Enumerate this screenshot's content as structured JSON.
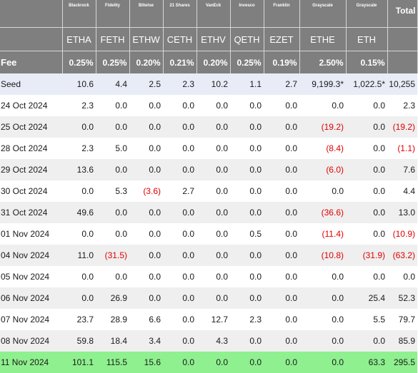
{
  "table": {
    "issuers": [
      "Blackrock",
      "Fidelity",
      "Bitwise",
      "21 Shares",
      "VanEck",
      "Invesco",
      "Franklin",
      "Grayscale",
      "Grayscale"
    ],
    "total_label": "Total",
    "tickers": [
      "ETHA",
      "FETH",
      "ETHW",
      "CETH",
      "ETHV",
      "QETH",
      "EZET",
      "ETHE",
      "ETH"
    ],
    "fee_label": "Fee",
    "fees": [
      "0.25%",
      "0.25%",
      "0.20%",
      "0.21%",
      "0.20%",
      "0.25%",
      "0.19%",
      "2.50%",
      "0.15%"
    ],
    "rows": [
      {
        "label": "Seed",
        "values": [
          "10.6",
          "4.4",
          "2.5",
          "2.3",
          "10.2",
          "1.1",
          "2.7",
          "9,199.3*",
          "1,022.5*",
          "10,255"
        ]
      },
      {
        "label": "24 Oct 2024",
        "values": [
          "2.3",
          "0.0",
          "0.0",
          "0.0",
          "0.0",
          "0.0",
          "0.0",
          "0.0",
          "0.0",
          "2.3"
        ]
      },
      {
        "label": "25 Oct 2024",
        "values": [
          "0.0",
          "0.0",
          "0.0",
          "0.0",
          "0.0",
          "0.0",
          "0.0",
          "(19.2)",
          "0.0",
          "(19.2)"
        ]
      },
      {
        "label": "28 Oct 2024",
        "values": [
          "2.3",
          "5.0",
          "0.0",
          "0.0",
          "0.0",
          "0.0",
          "0.0",
          "(8.4)",
          "0.0",
          "(1.1)"
        ]
      },
      {
        "label": "29 Oct 2024",
        "values": [
          "13.6",
          "0.0",
          "0.0",
          "0.0",
          "0.0",
          "0.0",
          "0.0",
          "(6.0)",
          "0.0",
          "7.6"
        ]
      },
      {
        "label": "30 Oct 2024",
        "values": [
          "0.0",
          "5.3",
          "(3.6)",
          "2.7",
          "0.0",
          "0.0",
          "0.0",
          "0.0",
          "0.0",
          "4.4"
        ]
      },
      {
        "label": "31 Oct 2024",
        "values": [
          "49.6",
          "0.0",
          "0.0",
          "0.0",
          "0.0",
          "0.0",
          "0.0",
          "(36.6)",
          "0.0",
          "13.0"
        ]
      },
      {
        "label": "01 Nov 2024",
        "values": [
          "0.0",
          "0.0",
          "0.0",
          "0.0",
          "0.0",
          "0.5",
          "0.0",
          "(11.4)",
          "0.0",
          "(10.9)"
        ]
      },
      {
        "label": "04 Nov 2024",
        "values": [
          "11.0",
          "(31.5)",
          "0.0",
          "0.0",
          "0.0",
          "0.0",
          "0.0",
          "(10.8)",
          "(31.9)",
          "(63.2)"
        ]
      },
      {
        "label": "05 Nov 2024",
        "values": [
          "0.0",
          "0.0",
          "0.0",
          "0.0",
          "0.0",
          "0.0",
          "0.0",
          "0.0",
          "0.0",
          "0.0"
        ]
      },
      {
        "label": "06 Nov 2024",
        "values": [
          "0.0",
          "26.9",
          "0.0",
          "0.0",
          "0.0",
          "0.0",
          "0.0",
          "0.0",
          "25.4",
          "52.3"
        ]
      },
      {
        "label": "07 Nov 2024",
        "values": [
          "23.7",
          "28.9",
          "6.6",
          "0.0",
          "12.7",
          "2.3",
          "0.0",
          "0.0",
          "5.5",
          "79.7"
        ]
      },
      {
        "label": "08 Nov 2024",
        "values": [
          "59.8",
          "18.4",
          "3.4",
          "0.0",
          "4.3",
          "0.0",
          "0.0",
          "0.0",
          "0.0",
          "85.9"
        ]
      },
      {
        "label": "11 Nov 2024",
        "values": [
          "101.1",
          "115.5",
          "15.6",
          "0.0",
          "0.0",
          "0.0",
          "0.0",
          "0.0",
          "63.3",
          "295.5"
        ]
      }
    ]
  },
  "colors": {
    "header_bg": "#7f7f7f",
    "seed_row_bg": "#e8ecf7",
    "alt_row_bg": "#efefef",
    "latest_row_bg": "#8ff08f",
    "negative_text": "#e00000"
  }
}
